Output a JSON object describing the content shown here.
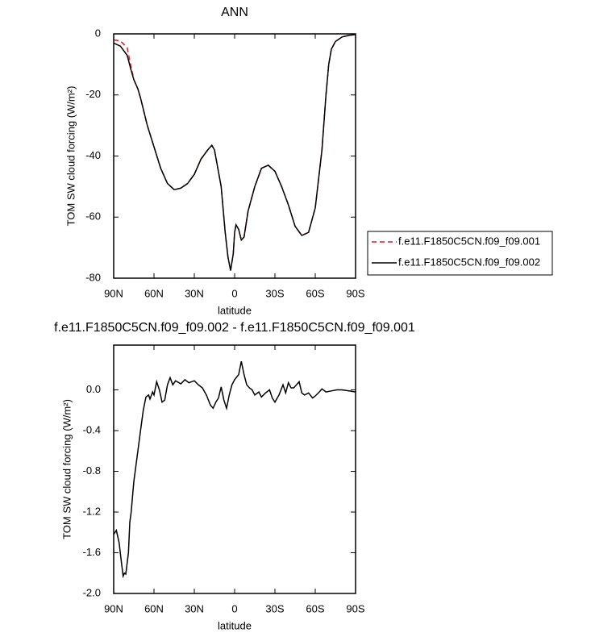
{
  "chart_data": [
    {
      "type": "line",
      "title": "ANN",
      "x_label": "latitude",
      "y_label": "TOM SW cloud forcing (W/m²)",
      "x": [
        90,
        85,
        80,
        77,
        75,
        72,
        70,
        65,
        60,
        55,
        50,
        45,
        40,
        35,
        30,
        25,
        20,
        17,
        15,
        10,
        7,
        5,
        3,
        1,
        0,
        -1,
        -3,
        -5,
        -7,
        -10,
        -15,
        -20,
        -25,
        -30,
        -35,
        -40,
        -45,
        -50,
        -55,
        -60,
        -65,
        -68,
        -70,
        -72,
        -75,
        -80,
        -85,
        -90
      ],
      "series": [
        {
          "name": "f.e11.F1850C5CN.f09_f09.001",
          "color": "#e41a1c",
          "dash": true,
          "values": [
            -2,
            -2.3,
            -4.5,
            -11,
            -15,
            -18,
            -21,
            -30,
            -37,
            -44,
            -49,
            -51,
            -50.5,
            -49,
            -46,
            -41,
            -38,
            -36.5,
            -38,
            -50,
            -65,
            -73,
            -77.5,
            -72,
            -65,
            -62.5,
            -64,
            -67.5,
            -66.5,
            -58,
            -50,
            -44,
            -43,
            -45,
            -50,
            -56,
            -63,
            -66,
            -65,
            -57,
            -38,
            -20,
            -10,
            -5,
            -2.5,
            -1,
            -0.5,
            -0.2
          ]
        },
        {
          "name": "f.e11.F1850C5CN.f09_f09.002",
          "color": "#000000",
          "dash": false,
          "values": [
            -3,
            -4,
            -7,
            -12,
            -15,
            -18,
            -21,
            -30,
            -37,
            -44,
            -49,
            -51,
            -50.5,
            -49,
            -46,
            -41,
            -38,
            -36.5,
            -38,
            -50,
            -65,
            -73,
            -77.5,
            -72,
            -65,
            -62.5,
            -64,
            -67.5,
            -66.5,
            -58,
            -50,
            -44,
            -43,
            -45,
            -50,
            -56,
            -63,
            -66,
            -65,
            -57,
            -38,
            -20,
            -10,
            -5,
            -2.5,
            -1,
            -0.5,
            -0.2
          ]
        }
      ],
      "xlim": [
        90,
        -90
      ],
      "xticks": [
        {
          "value": 90,
          "label": "90N"
        },
        {
          "value": 60,
          "label": "60N"
        },
        {
          "value": 30,
          "label": "30N"
        },
        0,
        {
          "value": -30,
          "label": "30S"
        },
        {
          "value": -60,
          "label": "60S"
        },
        {
          "value": -90,
          "label": "90S"
        }
      ],
      "ylim": [
        -80,
        0
      ],
      "yticks": [
        0,
        -20,
        -40,
        -60,
        -80
      ],
      "legend": "right"
    },
    {
      "type": "line",
      "title": "f.e11.F1850C5CN.f09_f09.002 - f.e11.F1850C5CN.f09_f09.001",
      "x_label": "latitude",
      "y_label": "TOM SW cloud forcing (W/m²)",
      "x": [
        90,
        88,
        86,
        84,
        83,
        82,
        81,
        79,
        78,
        77,
        75,
        72,
        70,
        68,
        66,
        64,
        63,
        61,
        60,
        58,
        56,
        54,
        52,
        50,
        48,
        46,
        44,
        40,
        37,
        34,
        30,
        27,
        24,
        21,
        18,
        16,
        14,
        12,
        10,
        8,
        6,
        4,
        2,
        0,
        -3,
        -5,
        -7,
        -9,
        -11,
        -13,
        -15,
        -18,
        -20,
        -23,
        -26,
        -28,
        -30,
        -33,
        -36,
        -38,
        -40,
        -42,
        -44,
        -46,
        -48,
        -50,
        -52,
        -55,
        -58,
        -60,
        -63,
        -65,
        -68,
        -72,
        -76,
        -80,
        -85,
        -90
      ],
      "values": [
        -1.42,
        -1.38,
        -1.5,
        -1.72,
        -1.83,
        -1.8,
        -1.81,
        -1.6,
        -1.3,
        -1.2,
        -0.9,
        -0.6,
        -0.4,
        -0.2,
        -0.07,
        -0.05,
        -0.09,
        -0.02,
        -0.05,
        0.08,
        0.0,
        -0.12,
        -0.1,
        0.05,
        0.12,
        0.05,
        0.09,
        0.06,
        0.1,
        0.07,
        0.09,
        0.05,
        0.02,
        -0.05,
        -0.15,
        -0.18,
        -0.12,
        -0.08,
        0.03,
        -0.1,
        -0.18,
        -0.05,
        0.05,
        0.1,
        0.15,
        0.28,
        0.15,
        0.05,
        0.02,
        0.0,
        -0.05,
        -0.02,
        -0.07,
        -0.03,
        0.0,
        -0.08,
        -0.12,
        -0.05,
        0.05,
        -0.03,
        0.07,
        0.02,
        0.02,
        0.05,
        0.08,
        -0.03,
        -0.05,
        -0.03,
        -0.08,
        -0.06,
        -0.02,
        0.01,
        -0.02,
        -0.01,
        0.0,
        0.0,
        -0.01,
        -0.02
      ],
      "color": "#000000",
      "xlim": [
        90,
        -90
      ],
      "xticks": [
        {
          "value": 90,
          "label": "90N"
        },
        {
          "value": 60,
          "label": "60N"
        },
        {
          "value": 30,
          "label": "30N"
        },
        0,
        {
          "value": -30,
          "label": "30S"
        },
        {
          "value": -60,
          "label": "60S"
        },
        {
          "value": -90,
          "label": "90S"
        }
      ],
      "ylim": [
        -2.0,
        0.44
      ],
      "yticks": [
        {
          "value": -2.0,
          "label": "-2.0"
        },
        {
          "value": -1.6,
          "label": "-1.6"
        },
        {
          "value": -1.2,
          "label": "-1.2"
        },
        {
          "value": -0.8,
          "label": "-0.8"
        },
        {
          "value": -0.4,
          "label": "-0.4"
        },
        {
          "value": 0.0,
          "label": "0.0"
        }
      ]
    }
  ]
}
